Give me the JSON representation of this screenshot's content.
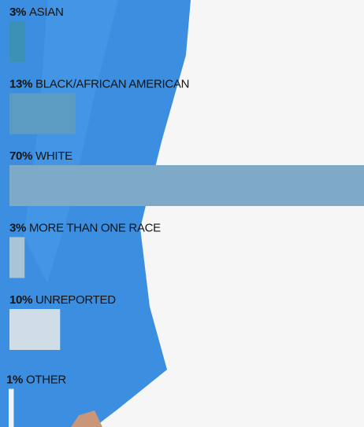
{
  "chart_data": {
    "type": "bar",
    "categories": [
      "ASIAN",
      "BLACK/AFRICAN AMERICAN",
      "WHITE",
      "MORE THAN ONE RACE",
      "UNREPORTED",
      "OTHER"
    ],
    "values": [
      3,
      13,
      70,
      3,
      10,
      1
    ],
    "value_labels": [
      "3%",
      "13%",
      "70%",
      "3%",
      "10%",
      "1%"
    ],
    "colors": [
      "#3a91b4",
      "#5d9cc2",
      "#7eaac8",
      "#a9c3d7",
      "#d0dde7",
      "#f2f5f8"
    ]
  }
}
